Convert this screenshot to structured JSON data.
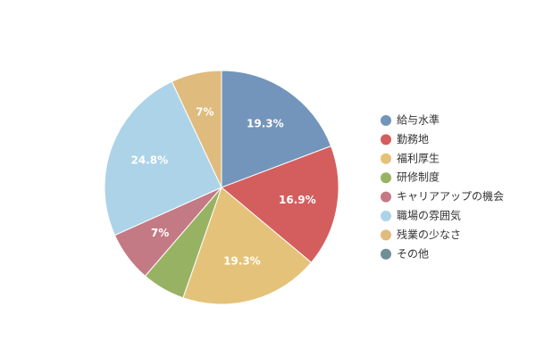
{
  "chart_data": {
    "type": "pie",
    "title": "",
    "legend_position": "right",
    "slices": [
      {
        "label": "給与水準",
        "value": 19.3,
        "display": "19.3%",
        "color": "#7395bb"
      },
      {
        "label": "勤務地",
        "value": 16.9,
        "display": "16.9%",
        "color": "#d45e5e"
      },
      {
        "label": "福利厚生",
        "value": 19.3,
        "display": "19.3%",
        "color": "#e5c27a"
      },
      {
        "label": "研修制度",
        "value": 6.0,
        "display": "",
        "color": "#98b263"
      },
      {
        "label": "キャリアアップの機会",
        "value": 7.0,
        "display": "7%",
        "color": "#c47a85"
      },
      {
        "label": "職場の雰囲気",
        "value": 24.8,
        "display": "24.8%",
        "color": "#acd3e8"
      },
      {
        "label": "残業の少なさ",
        "value": 7.0,
        "display": "7%",
        "color": "#e0bb7e"
      },
      {
        "label": "その他",
        "value": 0,
        "display": "",
        "color": "#6f8f97"
      }
    ]
  }
}
